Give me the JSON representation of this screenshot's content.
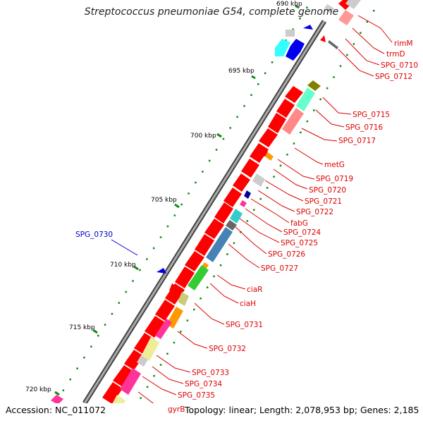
{
  "title": "Streptococcus pneumoniae G54, complete genome",
  "accession": "Accession: NC_011072",
  "summary": "Topology: linear; Length: 2,078,953 bp; Genes: 2,185",
  "scale_labels": [
    "690 kbp",
    "695 kbp",
    "700 kbp",
    "705 kbp",
    "710 kbp",
    "715 kbp",
    "720 kbp"
  ],
  "gene_labels": [
    {
      "text": "rimM",
      "color": "#dd0000"
    },
    {
      "text": "trmD",
      "color": "#dd0000"
    },
    {
      "text": "SPG_0710",
      "color": "#dd0000"
    },
    {
      "text": "SPG_0712",
      "color": "#dd0000"
    },
    {
      "text": "SPG_0715",
      "color": "#dd0000"
    },
    {
      "text": "SPG_0716",
      "color": "#dd0000"
    },
    {
      "text": "SPG_0717",
      "color": "#dd0000"
    },
    {
      "text": "metG",
      "color": "#dd0000"
    },
    {
      "text": "SPG_0719",
      "color": "#dd0000"
    },
    {
      "text": "SPG_0720",
      "color": "#dd0000"
    },
    {
      "text": "SPG_0721",
      "color": "#dd0000"
    },
    {
      "text": "SPG_0722",
      "color": "#dd0000"
    },
    {
      "text": "fabG",
      "color": "#dd0000"
    },
    {
      "text": "SPG_0724",
      "color": "#dd0000"
    },
    {
      "text": "SPG_0725",
      "color": "#dd0000"
    },
    {
      "text": "SPG_0726",
      "color": "#dd0000"
    },
    {
      "text": "SPG_0727",
      "color": "#dd0000"
    },
    {
      "text": "ciaR",
      "color": "#dd0000"
    },
    {
      "text": "ciaH",
      "color": "#dd0000"
    },
    {
      "text": "SPG_0731",
      "color": "#dd0000"
    },
    {
      "text": "SPG_0732",
      "color": "#dd0000"
    },
    {
      "text": "SPG_0733",
      "color": "#dd0000"
    },
    {
      "text": "SPG_0734",
      "color": "#dd0000"
    },
    {
      "text": "SPG_0735",
      "color": "#dd0000"
    },
    {
      "text": "gyrB",
      "color": "#dd0000"
    },
    {
      "text": "SPG_0730",
      "color": "#0000cc"
    }
  ],
  "colors": {
    "forward_gene": "#ff0000",
    "backbone": "#777777",
    "tick": "#118811",
    "reverse_gene": "#0000ee"
  }
}
